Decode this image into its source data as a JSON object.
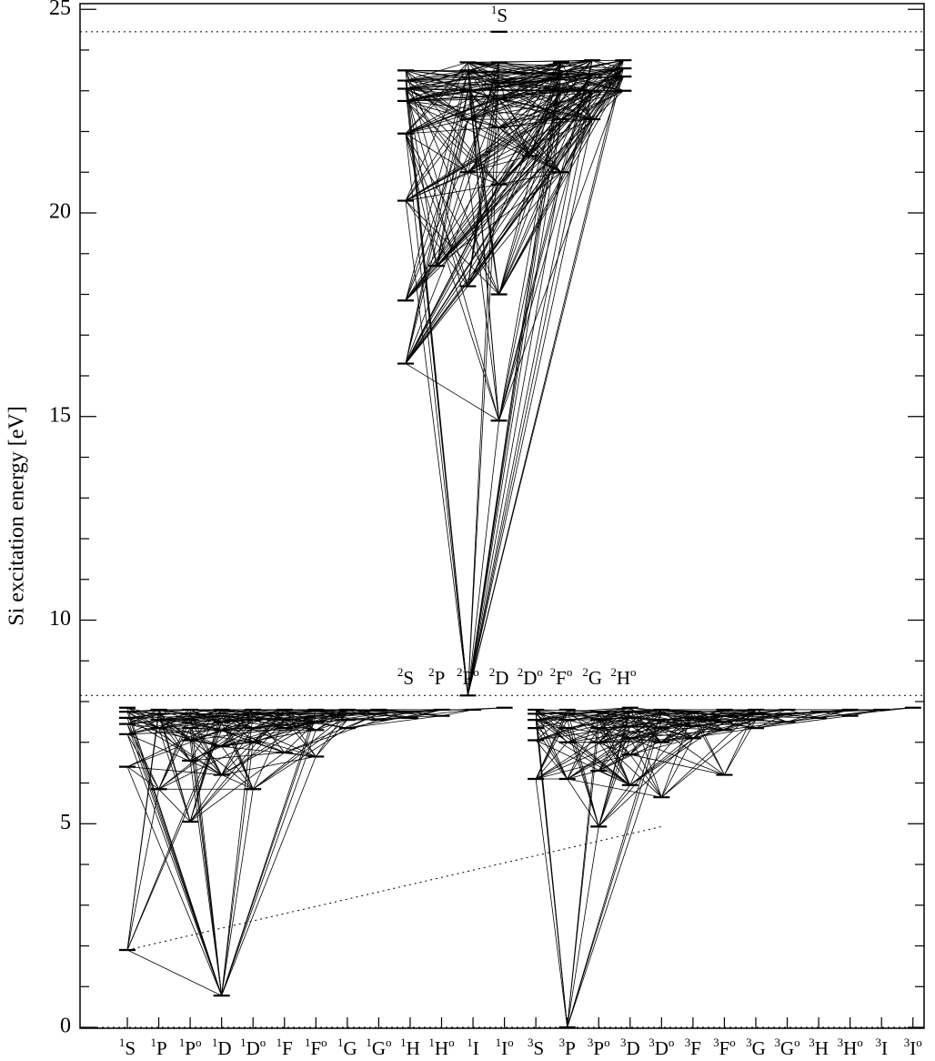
{
  "chart_data": {
    "type": "grotrian",
    "ylabel": "Si  excitation energy [eV]",
    "ylim": [
      0,
      25
    ],
    "yticks": [
      0,
      5,
      10,
      15,
      20,
      25
    ],
    "minor_tick_step": 1,
    "dotted_lines": [
      {
        "energy": 24.45
      },
      {
        "energy": 8.15
      },
      {
        "energy": 0
      }
    ],
    "dotted_connector": {
      "from": {
        "term": 0,
        "energy": 1.9
      },
      "to": {
        "term": 17,
        "energy": 4.93
      }
    },
    "terms": [
      {
        "base": "S",
        "mult": "1"
      },
      {
        "base": "P",
        "mult": "1"
      },
      {
        "base": "P",
        "mult": "1",
        "odd": "o"
      },
      {
        "base": "D",
        "mult": "1"
      },
      {
        "base": "D",
        "mult": "1",
        "odd": "o"
      },
      {
        "base": "F",
        "mult": "1"
      },
      {
        "base": "F",
        "mult": "1",
        "odd": "o"
      },
      {
        "base": "G",
        "mult": "1"
      },
      {
        "base": "G",
        "mult": "1",
        "odd": "o"
      },
      {
        "base": "H",
        "mult": "1"
      },
      {
        "base": "H",
        "mult": "1",
        "odd": "o"
      },
      {
        "base": "I",
        "mult": "1"
      },
      {
        "base": "I",
        "mult": "1",
        "odd": "o"
      },
      {
        "base": "S",
        "mult": "3"
      },
      {
        "base": "P",
        "mult": "3"
      },
      {
        "base": "P",
        "mult": "3",
        "odd": "o"
      },
      {
        "base": "D",
        "mult": "3"
      },
      {
        "base": "D",
        "mult": "3",
        "odd": "o"
      },
      {
        "base": "F",
        "mult": "3"
      },
      {
        "base": "F",
        "mult": "3",
        "odd": "o"
      },
      {
        "base": "G",
        "mult": "3"
      },
      {
        "base": "G",
        "mult": "3",
        "odd": "o"
      },
      {
        "base": "H",
        "mult": "3"
      },
      {
        "base": "H",
        "mult": "3",
        "odd": "o"
      },
      {
        "base": "I",
        "mult": "3"
      },
      {
        "base": "I",
        "mult": "3",
        "odd": "o"
      }
    ],
    "ion_terms": [
      {
        "base": "S",
        "mult": "2"
      },
      {
        "base": "P",
        "mult": "2"
      },
      {
        "base": "P",
        "mult": "2",
        "odd": "o"
      },
      {
        "base": "D",
        "mult": "2"
      },
      {
        "base": "D",
        "mult": "2",
        "odd": "o"
      },
      {
        "base": "F",
        "mult": "2",
        "odd": "o"
      },
      {
        "base": "G",
        "mult": "2"
      },
      {
        "base": "H",
        "mult": "2",
        "odd": "o"
      }
    ],
    "top_term": {
      "base": "S",
      "mult": "1"
    },
    "neutral_levels": [
      [
        1.9,
        6.4,
        7.2,
        7.45,
        7.6,
        7.75,
        7.85
      ],
      [
        5.85,
        7.35,
        7.55,
        7.7,
        7.8
      ],
      [
        5.05,
        6.55,
        7.05,
        7.35,
        7.55,
        7.7,
        7.8
      ],
      [
        0.78,
        6.2,
        6.9,
        7.3,
        7.5,
        7.65,
        7.8
      ],
      [
        5.85,
        7.0,
        7.35,
        7.55,
        7.7,
        7.8
      ],
      [
        6.75,
        7.35,
        7.55,
        7.7,
        7.8
      ],
      [
        6.65,
        7.3,
        7.5,
        7.65,
        7.8
      ],
      [
        7.35,
        7.55,
        7.7,
        7.8
      ],
      [
        7.55,
        7.7,
        7.8
      ],
      [
        7.6,
        7.75
      ],
      [
        7.65,
        7.8
      ],
      [
        7.8
      ],
      [
        7.85
      ],
      [
        6.1,
        7.05,
        7.35,
        7.55,
        7.7,
        7.8
      ],
      [
        0.0,
        6.1,
        7.0,
        7.35,
        7.55,
        7.7,
        7.8
      ],
      [
        4.93,
        6.3,
        7.0,
        7.35,
        7.55,
        7.75
      ],
      [
        5.95,
        6.7,
        7.1,
        7.4,
        7.6,
        7.75,
        7.85
      ],
      [
        5.65,
        7.0,
        7.35,
        7.55,
        7.7,
        7.8
      ],
      [
        7.1,
        7.4,
        7.6,
        7.75
      ],
      [
        6.2,
        7.3,
        7.5,
        7.65,
        7.8
      ],
      [
        7.35,
        7.55,
        7.7,
        7.8
      ],
      [
        7.5,
        7.7,
        7.8
      ],
      [
        7.6,
        7.75
      ],
      [
        7.65,
        7.8
      ],
      [
        7.8
      ],
      [
        7.85
      ]
    ],
    "ion_levels": [
      [
        16.3,
        17.85,
        20.3,
        21.95,
        22.75,
        23.05,
        23.25,
        23.5
      ],
      [
        18.7
      ],
      [
        8.15,
        18.2,
        21.0,
        22.3,
        23.0,
        23.5,
        23.7
      ],
      [
        14.9,
        18.0,
        20.7,
        22.1,
        22.8,
        23.2,
        23.7
      ],
      [
        21.4
      ],
      [
        21.0,
        22.3,
        23.0,
        23.4,
        23.7
      ],
      [
        22.3,
        23.0,
        23.4,
        23.75
      ],
      [
        23.0,
        23.35,
        23.55,
        23.75
      ]
    ]
  }
}
